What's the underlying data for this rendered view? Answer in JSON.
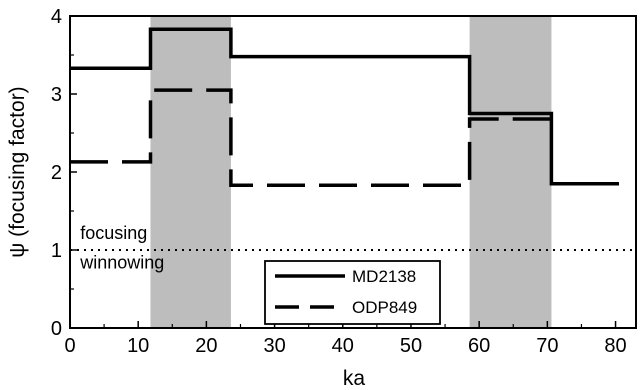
{
  "chart_data": {
    "type": "line",
    "xlabel": "ka",
    "ylabel": "ψ (focusing factor)",
    "xlim": [
      0,
      83
    ],
    "ylim": [
      0,
      4
    ],
    "xticks": [
      0,
      10,
      20,
      30,
      40,
      50,
      60,
      70,
      80
    ],
    "yticks": [
      0,
      1,
      2,
      3,
      4
    ],
    "grid": false,
    "legend_position": "bottom-center",
    "shaded_bands": [
      {
        "from": 11.8,
        "to": 23.6,
        "color": "#bdbdbd"
      },
      {
        "from": 58.6,
        "to": 70.6,
        "color": "#bdbdbd"
      }
    ],
    "reference_line": {
      "y": 1,
      "style": "dotted"
    },
    "annotations": [
      {
        "text": "focusing",
        "x": 1.5,
        "y": 1.14
      },
      {
        "text": "winnowing",
        "x": 1.5,
        "y": 0.76
      }
    ],
    "series": [
      {
        "name": "MD2138",
        "style": "solid",
        "x": [
          0,
          11.8,
          11.8,
          23.6,
          23.6,
          58.6,
          58.6,
          70.6,
          70.6,
          80.5
        ],
        "y": [
          3.33,
          3.33,
          3.83,
          3.83,
          3.48,
          3.48,
          2.75,
          2.75,
          1.85,
          1.85
        ]
      },
      {
        "name": "ODP849",
        "style": "dashed",
        "x": [
          0,
          11.8,
          11.8,
          23.6,
          23.6,
          58.6,
          58.6,
          70.6
        ],
        "y": [
          2.13,
          2.13,
          3.05,
          3.05,
          1.83,
          1.83,
          2.68,
          2.68
        ]
      }
    ]
  }
}
